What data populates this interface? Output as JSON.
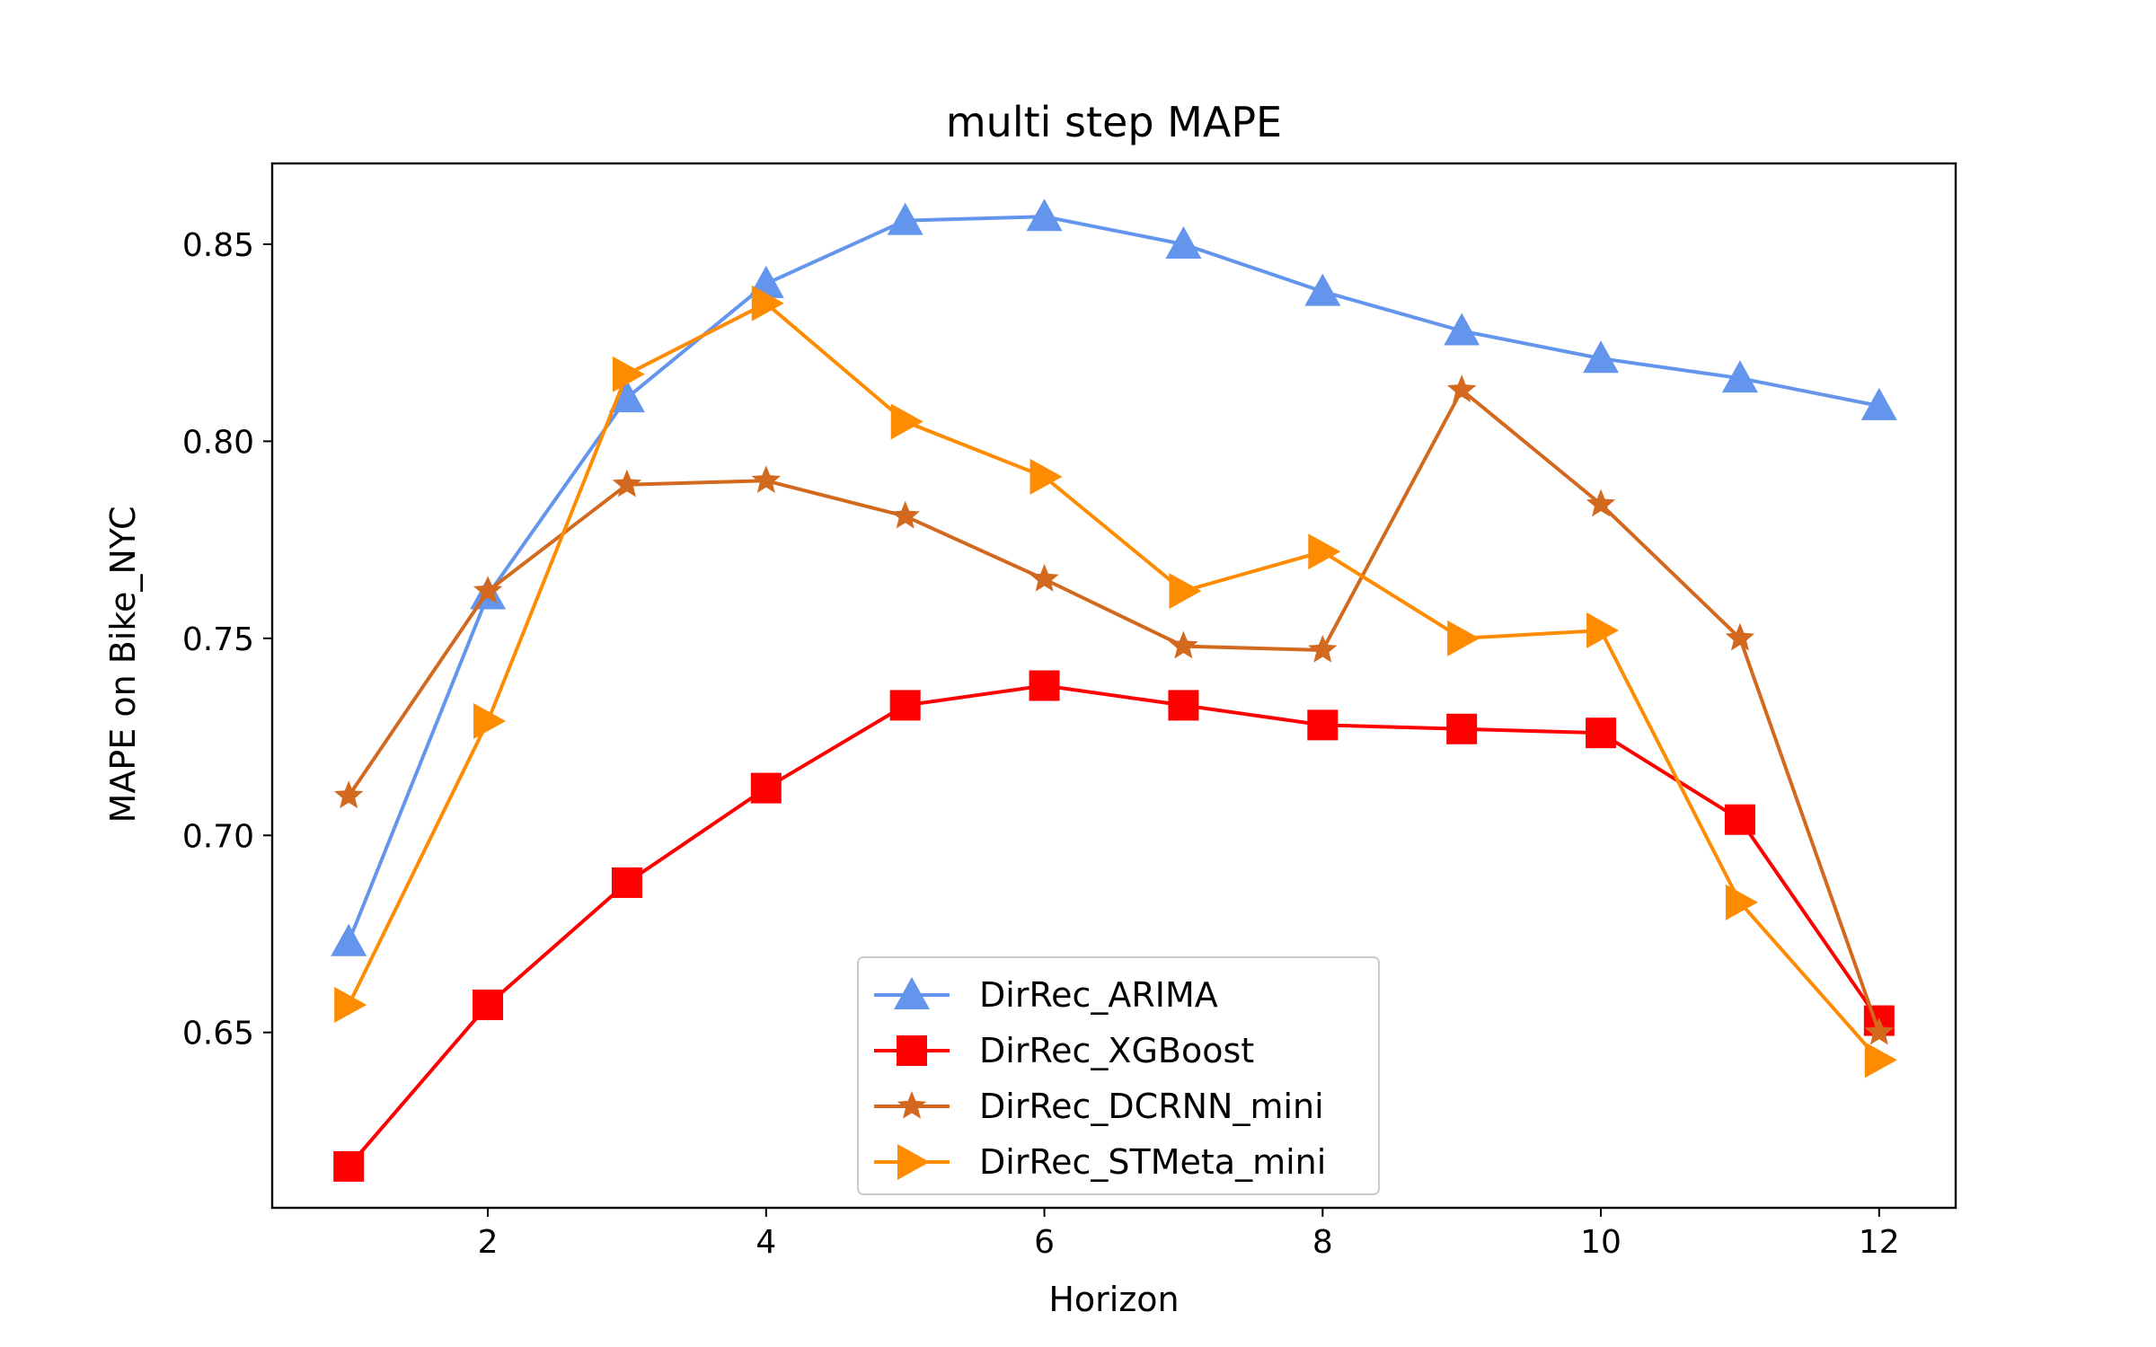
{
  "chart_data": {
    "type": "line",
    "title": "multi step MAPE",
    "xlabel": "Horizon",
    "ylabel": "MAPE on Bike_NYC",
    "x": [
      1,
      2,
      3,
      4,
      5,
      6,
      7,
      8,
      9,
      10,
      11,
      12
    ],
    "xlim": [
      0.45,
      12.55
    ],
    "ylim": [
      0.6055,
      0.8705
    ],
    "xticks": [
      2,
      4,
      6,
      8,
      10,
      12
    ],
    "yticks": [
      0.65,
      0.7,
      0.75,
      0.8,
      0.85
    ],
    "ytick_labels": [
      "0.65",
      "0.70",
      "0.75",
      "0.80",
      "0.85"
    ],
    "grid": false,
    "legend_position": "lower-center",
    "series": [
      {
        "name": "DirRec_ARIMA",
        "color": "#6495ED",
        "marker": "triangle-up",
        "values": [
          0.673,
          0.761,
          0.811,
          0.84,
          0.856,
          0.857,
          0.85,
          0.838,
          0.828,
          0.821,
          0.816,
          0.809
        ]
      },
      {
        "name": "DirRec_XGBoost",
        "color": "#FF0000",
        "marker": "square",
        "values": [
          0.616,
          0.657,
          0.688,
          0.712,
          0.733,
          0.738,
          0.733,
          0.728,
          0.727,
          0.726,
          0.704,
          0.653
        ]
      },
      {
        "name": "DirRec_DCRNN_mini",
        "color": "#D2691E",
        "marker": "star",
        "values": [
          0.71,
          0.762,
          0.789,
          0.79,
          0.781,
          0.765,
          0.748,
          0.747,
          0.813,
          0.784,
          0.75,
          0.65
        ]
      },
      {
        "name": "DirRec_STMeta_mini",
        "color": "#FF8C00",
        "marker": "triangle-right",
        "values": [
          0.657,
          0.729,
          0.817,
          0.835,
          0.805,
          0.791,
          0.762,
          0.772,
          0.75,
          0.752,
          0.683,
          0.643
        ]
      }
    ]
  }
}
